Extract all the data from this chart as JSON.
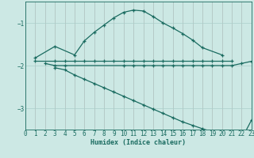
{
  "bg_color": "#cce8e4",
  "grid_color": "#aacfcb",
  "line_color": "#1a6b60",
  "series1_x": [
    1,
    3,
    5,
    6,
    7,
    8,
    9,
    10,
    11,
    12,
    13,
    14,
    15,
    16,
    17,
    18,
    20
  ],
  "series1_y": [
    -1.82,
    -1.55,
    -1.75,
    -1.42,
    -1.22,
    -1.05,
    -0.88,
    -0.75,
    -0.7,
    -0.72,
    -0.85,
    -1.0,
    -1.12,
    -1.25,
    -1.4,
    -1.58,
    -1.75
  ],
  "series2_x": [
    1,
    3,
    4,
    5,
    6,
    7,
    8,
    9,
    10,
    11,
    12,
    13,
    14,
    15,
    16,
    17,
    18,
    19,
    20,
    21
  ],
  "series2_y": [
    -1.88,
    -1.88,
    -1.88,
    -1.88,
    -1.88,
    -1.88,
    -1.88,
    -1.88,
    -1.88,
    -1.88,
    -1.88,
    -1.88,
    -1.88,
    -1.88,
    -1.88,
    -1.88,
    -1.88,
    -1.88,
    -1.88,
    -1.88
  ],
  "series3_x": [
    2,
    3,
    4,
    10,
    11,
    12,
    13,
    14,
    15,
    16,
    17,
    18,
    19,
    20,
    21,
    22,
    23
  ],
  "series3_y": [
    -1.95,
    -2.0,
    -2.0,
    -2.0,
    -2.0,
    -2.0,
    -2.0,
    -2.0,
    -2.0,
    -2.0,
    -2.0,
    -2.0,
    -2.0,
    -2.0,
    -2.0,
    -1.95,
    -1.9
  ],
  "series4_x": [
    3,
    4,
    5,
    6,
    7,
    8,
    9,
    10,
    11,
    12,
    13,
    14,
    15,
    16,
    17,
    18,
    19,
    20,
    21,
    22,
    23
  ],
  "series4_y": [
    -2.05,
    -2.1,
    -2.22,
    -2.32,
    -2.42,
    -2.52,
    -2.62,
    -2.72,
    -2.82,
    -2.92,
    -3.02,
    -3.12,
    -3.22,
    -3.32,
    -3.4,
    -3.48,
    -3.55,
    -3.62,
    -3.68,
    -3.72,
    -3.28
  ],
  "xlabel": "Humidex (Indice chaleur)",
  "xlim": [
    0,
    23
  ],
  "ylim": [
    -3.5,
    -0.5
  ],
  "yticks": [
    -3,
    -2,
    -1
  ],
  "xticks": [
    0,
    1,
    2,
    3,
    4,
    5,
    6,
    7,
    8,
    9,
    10,
    11,
    12,
    13,
    14,
    15,
    16,
    17,
    18,
    19,
    20,
    21,
    22,
    23
  ]
}
